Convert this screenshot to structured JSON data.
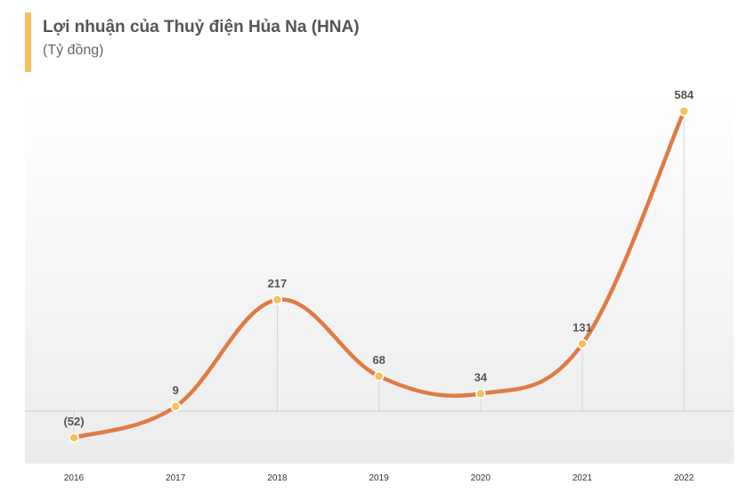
{
  "chart_data": {
    "type": "line",
    "title": "Lợi nhuận của Thuỷ điện Hủa Na (HNA)",
    "subtitle": "(Tỷ đồng)",
    "categories": [
      "2016",
      "2017",
      "2018",
      "2019",
      "2020",
      "2021",
      "2022"
    ],
    "values": [
      -52,
      9,
      217,
      68,
      34,
      131,
      584
    ],
    "value_labels": [
      "(52)",
      "9",
      "217",
      "68",
      "34",
      "131",
      "584"
    ],
    "ylim": [
      -60,
      600
    ],
    "grid": false,
    "smooth": true,
    "colors": {
      "line": "#e07b45",
      "marker": "#f0c35c",
      "accent_bar": "#f3c25a",
      "axis": "#d0d0d0",
      "drop_line": "#d6d6d6"
    }
  }
}
